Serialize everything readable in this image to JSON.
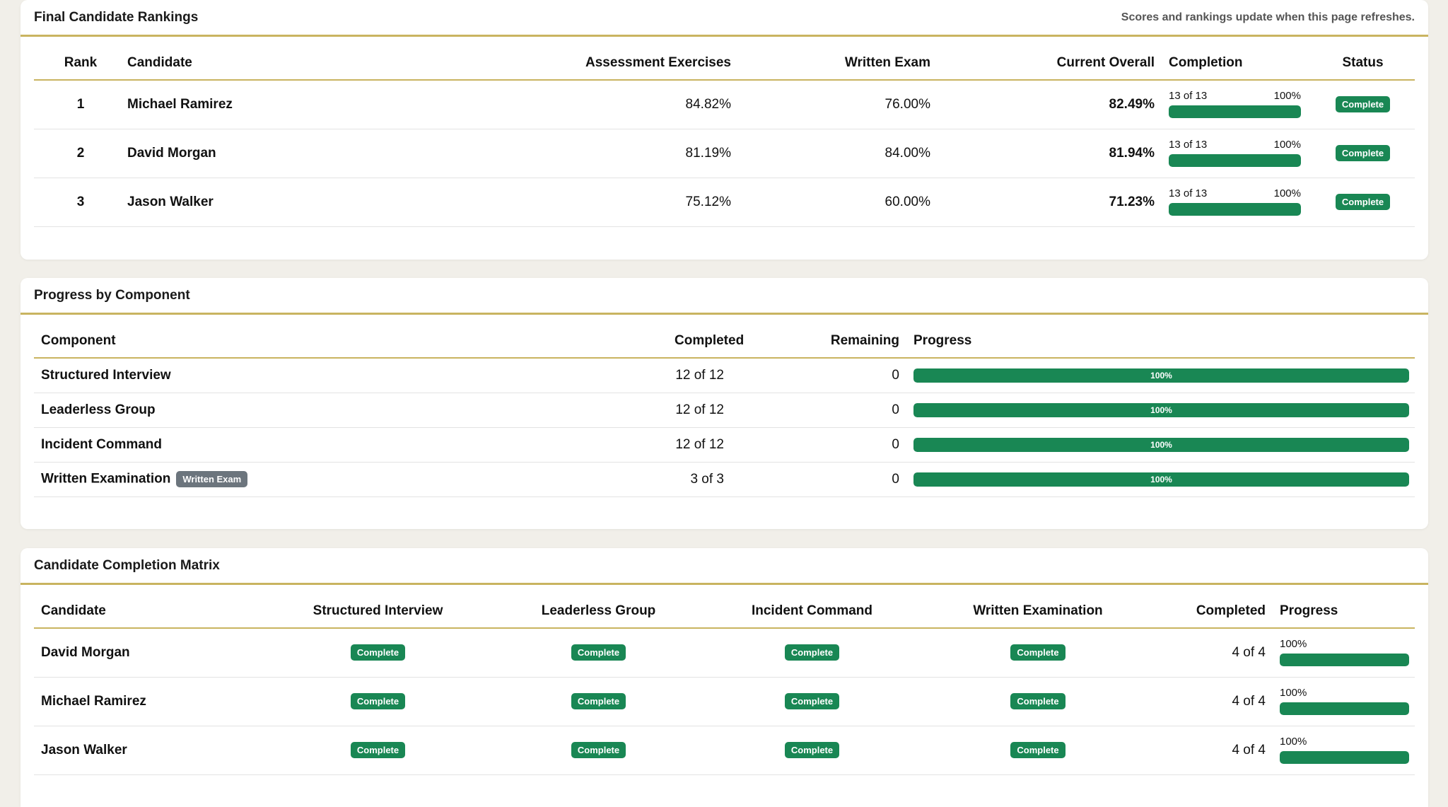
{
  "rankings": {
    "title": "Final Candidate Rankings",
    "note": "Scores and rankings update when this page refreshes.",
    "headers": {
      "rank": "Rank",
      "candidate": "Candidate",
      "assessment": "Assessment Exercises",
      "written": "Written Exam",
      "overall": "Current Overall",
      "completion": "Completion",
      "status": "Status"
    },
    "rows": [
      {
        "rank": "1",
        "candidate": "Michael Ramirez",
        "assessment": "84.82%",
        "written": "76.00%",
        "overall": "82.49%",
        "completion_count": "13 of 13",
        "completion_pct": "100%",
        "completion_value": 100,
        "status": "Complete"
      },
      {
        "rank": "2",
        "candidate": "David Morgan",
        "assessment": "81.19%",
        "written": "84.00%",
        "overall": "81.94%",
        "completion_count": "13 of 13",
        "completion_pct": "100%",
        "completion_value": 100,
        "status": "Complete"
      },
      {
        "rank": "3",
        "candidate": "Jason Walker",
        "assessment": "75.12%",
        "written": "60.00%",
        "overall": "71.23%",
        "completion_count": "13 of 13",
        "completion_pct": "100%",
        "completion_value": 100,
        "status": "Complete"
      }
    ]
  },
  "components": {
    "title": "Progress by Component",
    "headers": {
      "component": "Component",
      "completed": "Completed",
      "remaining": "Remaining",
      "progress": "Progress"
    },
    "rows": [
      {
        "component": "Structured Interview",
        "tag": "",
        "completed": "12 of 12",
        "remaining": "0",
        "progress_label": "100%",
        "progress_value": 100
      },
      {
        "component": "Leaderless Group",
        "tag": "",
        "completed": "12 of 12",
        "remaining": "0",
        "progress_label": "100%",
        "progress_value": 100
      },
      {
        "component": "Incident Command",
        "tag": "",
        "completed": "12 of 12",
        "remaining": "0",
        "progress_label": "100%",
        "progress_value": 100
      },
      {
        "component": "Written Examination",
        "tag": "Written Exam",
        "completed": "3 of 3",
        "remaining": "0",
        "progress_label": "100%",
        "progress_value": 100
      }
    ]
  },
  "matrix": {
    "title": "Candidate Completion Matrix",
    "headers": {
      "candidate": "Candidate",
      "structured": "Structured Interview",
      "leaderless": "Leaderless Group",
      "incident": "Incident Command",
      "written": "Written Examination",
      "completed": "Completed",
      "progress": "Progress"
    },
    "rows": [
      {
        "candidate": "David Morgan",
        "structured": "Complete",
        "leaderless": "Complete",
        "incident": "Complete",
        "written": "Complete",
        "completed": "4 of 4",
        "progress_label": "100%",
        "progress_value": 100
      },
      {
        "candidate": "Michael Ramirez",
        "structured": "Complete",
        "leaderless": "Complete",
        "incident": "Complete",
        "written": "Complete",
        "completed": "4 of 4",
        "progress_label": "100%",
        "progress_value": 100
      },
      {
        "candidate": "Jason Walker",
        "structured": "Complete",
        "leaderless": "Complete",
        "incident": "Complete",
        "written": "Complete",
        "completed": "4 of 4",
        "progress_label": "100%",
        "progress_value": 100
      }
    ]
  },
  "colors": {
    "accent_rule": "#c9b460",
    "success": "#198754",
    "tag_gray": "#6c757d",
    "page_background": "#f1efe9"
  }
}
